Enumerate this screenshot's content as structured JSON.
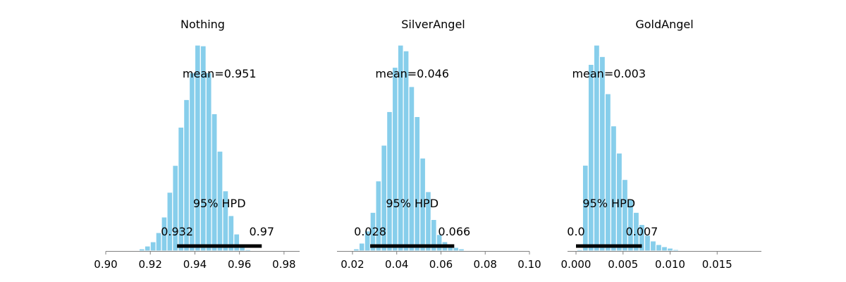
{
  "chart_data": [
    {
      "type": "histogram",
      "title": "Nothing",
      "xlim": [
        0.9,
        0.987
      ],
      "xticks": [
        0.9,
        0.92,
        0.94,
        0.96,
        0.98
      ],
      "xtick_labels": [
        "0.90",
        "0.92",
        "0.94",
        "0.96",
        "0.98"
      ],
      "bin_start": 0.9125,
      "bin_width": 0.0025,
      "counts": [
        1,
        3,
        7,
        13,
        26,
        48,
        83,
        121,
        175,
        214,
        252,
        291,
        290,
        252,
        194,
        141,
        85,
        50,
        24,
        9,
        2
      ],
      "mean_label": "mean=0.951",
      "hpd_label": "95% HPD",
      "hpd": [
        0.932,
        0.97
      ],
      "hpd_low_label": "0.932",
      "hpd_high_label": "0.97"
    },
    {
      "type": "histogram",
      "title": "SilverAngel",
      "xlim": [
        0.013,
        0.1
      ],
      "xticks": [
        0.02,
        0.04,
        0.06,
        0.08,
        0.1
      ],
      "xtick_labels": [
        "0.02",
        "0.04",
        "0.06",
        "0.08",
        "0.10"
      ],
      "bin_start": 0.0205,
      "bin_width": 0.0025,
      "counts": [
        3,
        11,
        28,
        54,
        98,
        148,
        195,
        257,
        288,
        280,
        230,
        188,
        130,
        83,
        44,
        23,
        13,
        8,
        5,
        3,
        1
      ],
      "mean_label": "mean=0.046",
      "hpd_label": "95% HPD",
      "hpd": [
        0.028,
        0.066
      ],
      "hpd_low_label": "0.028",
      "hpd_high_label": "0.066"
    },
    {
      "type": "histogram",
      "title": "GoldAngel",
      "xlim": [
        -0.0009,
        0.0197
      ],
      "xticks": [
        0.0,
        0.005,
        0.01,
        0.015
      ],
      "xtick_labels": [
        "0.000",
        "0.005",
        "0.010",
        "0.015"
      ],
      "bin_start": 0.0001,
      "bin_width": 0.0006,
      "counts": [
        2,
        120,
        261,
        288,
        272,
        220,
        175,
        137,
        100,
        72,
        54,
        37,
        22,
        14,
        9,
        6,
        4,
        2,
        1
      ],
      "mean_label": "mean=0.003",
      "hpd_label": "95% HPD",
      "hpd": [
        0.0,
        0.007
      ],
      "hpd_low_label": "0.0",
      "hpd_high_label": "0.007"
    }
  ],
  "colors": {
    "bar_fill": "#87ceeb",
    "bar_edge": "#ffffff",
    "hpd_line": "#000000",
    "axis": "#808080"
  }
}
